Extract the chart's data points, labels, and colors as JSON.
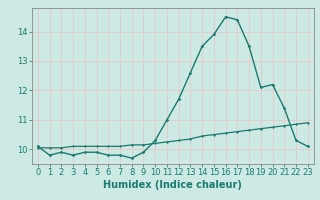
{
  "xlabel": "Humidex (Indice chaleur)",
  "background_color": "#cce9e4",
  "line_color": "#1a7a6e",
  "grid_color": "#e8c8c8",
  "x_values": [
    0,
    1,
    2,
    3,
    4,
    5,
    6,
    7,
    8,
    9,
    10,
    11,
    12,
    13,
    14,
    15,
    16,
    17,
    18,
    19,
    20,
    21,
    22,
    23
  ],
  "line1_y": [
    10.1,
    9.8,
    9.9,
    9.8,
    9.9,
    9.9,
    9.8,
    9.8,
    9.7,
    9.9,
    10.3,
    11.0,
    11.7,
    12.6,
    13.5,
    13.9,
    14.5,
    14.4,
    13.5,
    12.1,
    12.2,
    11.4,
    10.3,
    10.1
  ],
  "line2_y": [
    10.05,
    10.05,
    10.05,
    10.1,
    10.1,
    10.1,
    10.1,
    10.1,
    10.15,
    10.15,
    10.2,
    10.25,
    10.3,
    10.35,
    10.45,
    10.5,
    10.55,
    10.6,
    10.65,
    10.7,
    10.75,
    10.8,
    10.85,
    10.9
  ],
  "ylim": [
    9.5,
    14.8
  ],
  "xlim": [
    -0.5,
    23.5
  ],
  "yticks": [
    10,
    11,
    12,
    13,
    14
  ],
  "xticks": [
    0,
    1,
    2,
    3,
    4,
    5,
    6,
    7,
    8,
    9,
    10,
    11,
    12,
    13,
    14,
    15,
    16,
    17,
    18,
    19,
    20,
    21,
    22,
    23
  ],
  "tick_fontsize": 6,
  "label_fontsize": 7,
  "spine_color": "#888888"
}
